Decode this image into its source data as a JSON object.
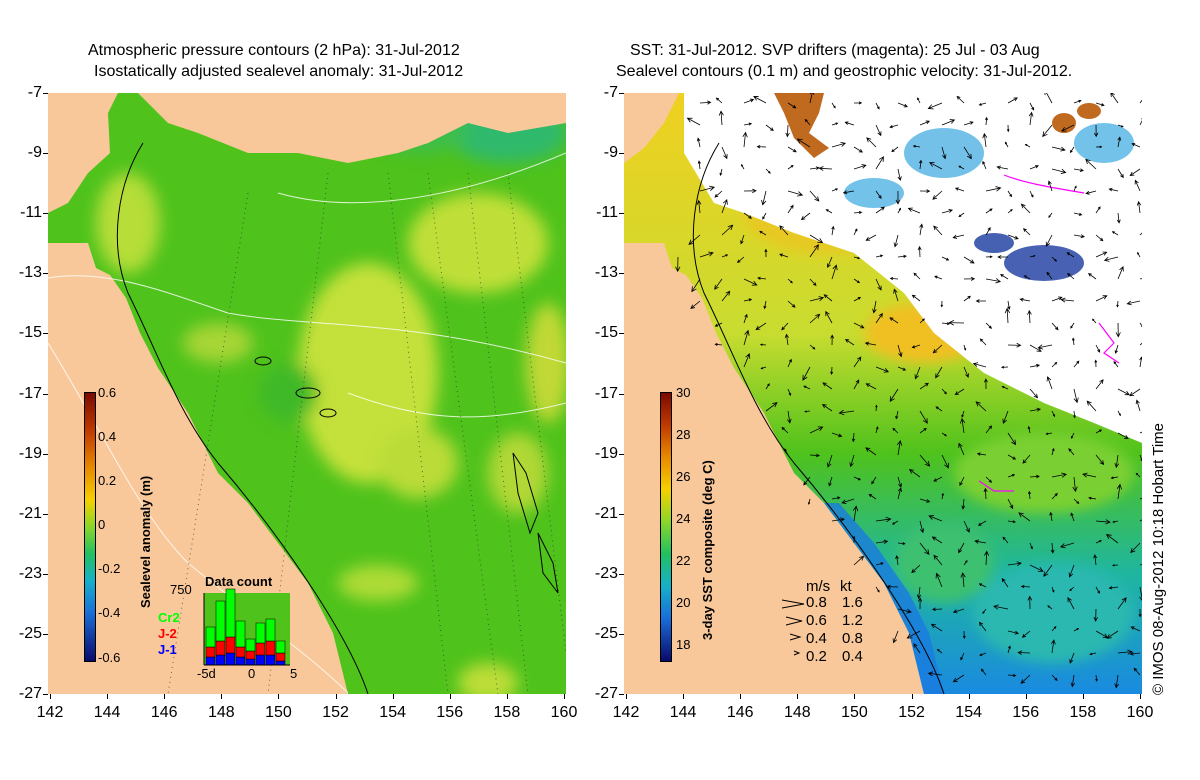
{
  "left_title": {
    "line1": "Atmospheric pressure contours (2 hPa): 31-Jul-2012",
    "line2": "Isostatically adjusted sealevel anomaly: 31-Jul-2012"
  },
  "right_title": {
    "line1": "SST: 31-Jul-2012. SVP drifters (magenta): 25 Jul - 03 Aug",
    "line2": "Sealevel contours (0.1 m) and geostrophic velocity: 31-Jul-2012."
  },
  "y_ticks": [
    "-7",
    "-9",
    "-11",
    "-13",
    "-15",
    "-17",
    "-19",
    "-21",
    "-23",
    "-25",
    "-27"
  ],
  "x_ticks": [
    "142",
    "144",
    "146",
    "148",
    "150",
    "152",
    "154",
    "156",
    "158",
    "160"
  ],
  "left_colorbar": {
    "label": "Sealevel anomaly (m)",
    "ticks": [
      "0.6",
      "0.4",
      "0.2",
      "0",
      "-0.2",
      "-0.4",
      "-0.6"
    ]
  },
  "right_colorbar": {
    "label": "3-day SST composite (deg C)",
    "ticks": [
      "30",
      "28",
      "26",
      "24",
      "22",
      "20",
      "18"
    ]
  },
  "data_count": {
    "title": "Data count",
    "ymax_label": "750",
    "x_labels": [
      "-5d",
      "0",
      "5"
    ],
    "series": [
      {
        "name": "Cr2",
        "color": "#00ff00"
      },
      {
        "name": "J-2",
        "color": "#ff0000"
      },
      {
        "name": "J-1",
        "color": "#0000ff"
      }
    ]
  },
  "velocity_legend": {
    "header_ms": "m/s",
    "header_kt": "kt",
    "rows": [
      {
        "ms": "0.8",
        "kt": "1.6"
      },
      {
        "ms": "0.6",
        "kt": "1.2"
      },
      {
        "ms": "0.4",
        "kt": "0.8"
      },
      {
        "ms": "0.2",
        "kt": "0.4"
      }
    ]
  },
  "credit": "© IMOS 08-Aug-2012 10:18 Hobart Time",
  "colors": {
    "land": "#f9c89a",
    "sea_green": "#4fc21c",
    "sea_yellow": "#d8e23a",
    "white_cloud": "#ffffff",
    "drifter": "#ff00ff"
  }
}
